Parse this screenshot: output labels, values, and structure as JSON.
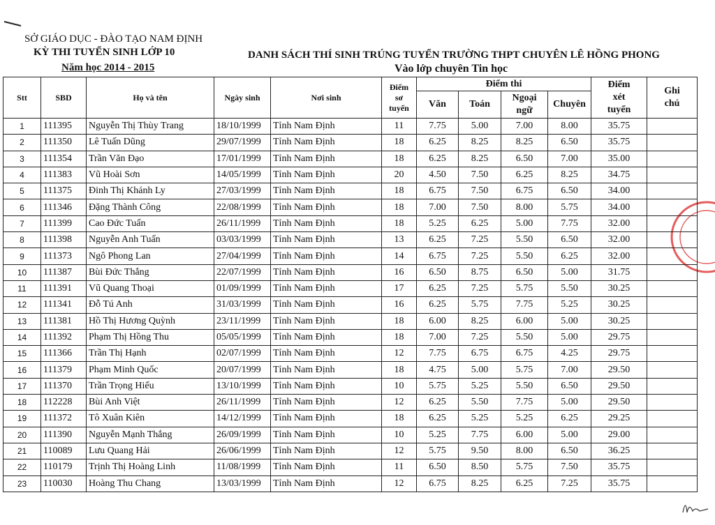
{
  "header": {
    "department": "SỞ GIÁO DỤC - ĐÀO TẠO NAM ĐỊNH",
    "exam": "KỲ THI TUYỂN SINH LỚP 10",
    "year": "Năm học 2014 - 2015",
    "title": "DANH SÁCH THÍ SINH TRÚNG TUYỂN TRƯỜNG THPT CHUYÊN LÊ HỒNG PHONG",
    "subtitle": "Vào lớp chuyên Tin học"
  },
  "table": {
    "columns": {
      "stt": "Stt",
      "sbd": "SBD",
      "name": "Họ và tên",
      "dob": "Ngày sinh",
      "birthplace": "Nơi sinh",
      "prelim": [
        "Điểm",
        "sơ",
        "tuyển"
      ],
      "exam": "Điểm thi",
      "lit": "Văn",
      "math": "Toán",
      "lang": [
        "Ngoại",
        "ngữ"
      ],
      "major": "Chuyên",
      "total": [
        "Điểm",
        "xét",
        "tuyển"
      ],
      "note": [
        "Ghi",
        "chú"
      ]
    },
    "rows": [
      [
        "1",
        "111395",
        "Nguyễn Thị Thùy Trang",
        "18/10/1999",
        "Tỉnh Nam Định",
        "11",
        "7.75",
        "5.00",
        "7.00",
        "8.00",
        "35.75"
      ],
      [
        "2",
        "111350",
        "Lê Tuấn Dũng",
        "29/07/1999",
        "Tỉnh Nam Định",
        "18",
        "6.25",
        "8.25",
        "8.25",
        "6.50",
        "35.75"
      ],
      [
        "3",
        "111354",
        "Trần Văn Đạo",
        "17/01/1999",
        "Tỉnh Nam Định",
        "18",
        "6.25",
        "8.25",
        "6.50",
        "7.00",
        "35.00"
      ],
      [
        "4",
        "111383",
        "Vũ Hoài Sơn",
        "14/05/1999",
        "Tỉnh Nam Định",
        "20",
        "4.50",
        "7.50",
        "6.25",
        "8.25",
        "34.75"
      ],
      [
        "5",
        "111375",
        "Đinh Thị Khánh Ly",
        "27/03/1999",
        "Tỉnh Nam Định",
        "18",
        "6.75",
        "7.50",
        "6.75",
        "6.50",
        "34.00"
      ],
      [
        "6",
        "111346",
        "Đặng Thành Công",
        "22/08/1999",
        "Tỉnh Nam Định",
        "18",
        "7.00",
        "7.50",
        "8.00",
        "5.75",
        "34.00"
      ],
      [
        "7",
        "111399",
        "Cao Đức Tuấn",
        "26/11/1999",
        "Tỉnh Nam Định",
        "18",
        "5.25",
        "6.25",
        "5.00",
        "7.75",
        "32.00"
      ],
      [
        "8",
        "111398",
        "Nguyễn Anh Tuấn",
        "03/03/1999",
        "Tỉnh Nam Định",
        "13",
        "6.25",
        "7.25",
        "5.50",
        "6.50",
        "32.00"
      ],
      [
        "9",
        "111373",
        "Ngô Phong Lan",
        "27/04/1999",
        "Tỉnh Nam Định",
        "14",
        "6.75",
        "7.25",
        "5.50",
        "6.25",
        "32.00"
      ],
      [
        "10",
        "111387",
        "Bùi Đức Thắng",
        "22/07/1999",
        "Tỉnh Nam Định",
        "16",
        "6.50",
        "8.75",
        "6.50",
        "5.00",
        "31.75"
      ],
      [
        "11",
        "111391",
        "Vũ Quang Thoại",
        "01/09/1999",
        "Tỉnh Nam Định",
        "17",
        "6.25",
        "7.25",
        "5.75",
        "5.50",
        "30.25"
      ],
      [
        "12",
        "111341",
        "Đỗ Tú Anh",
        "31/03/1999",
        "Tỉnh Nam Định",
        "16",
        "6.25",
        "5.75",
        "7.75",
        "5.25",
        "30.25"
      ],
      [
        "13",
        "111381",
        "Hồ Thị Hương Quỳnh",
        "23/11/1999",
        "Tỉnh Nam Định",
        "18",
        "6.00",
        "8.25",
        "6.00",
        "5.00",
        "30.25"
      ],
      [
        "14",
        "111392",
        "Phạm Thị Hồng Thu",
        "05/05/1999",
        "Tỉnh Nam Định",
        "18",
        "7.00",
        "7.25",
        "5.50",
        "5.00",
        "29.75"
      ],
      [
        "15",
        "111366",
        "Trần Thị Hạnh",
        "02/07/1999",
        "Tỉnh Nam Định",
        "12",
        "7.75",
        "6.75",
        "6.75",
        "4.25",
        "29.75"
      ],
      [
        "16",
        "111379",
        "Phạm Minh Quốc",
        "20/07/1999",
        "Tỉnh Nam Định",
        "18",
        "4.75",
        "5.00",
        "5.75",
        "7.00",
        "29.50"
      ],
      [
        "17",
        "111370",
        "Trần Trọng Hiếu",
        "13/10/1999",
        "Tỉnh Nam Định",
        "10",
        "5.75",
        "5.25",
        "5.50",
        "6.50",
        "29.50"
      ],
      [
        "18",
        "112228",
        "Bùi Anh Việt",
        "26/11/1999",
        "Tỉnh Nam Định",
        "12",
        "6.25",
        "5.50",
        "7.75",
        "5.00",
        "29.50"
      ],
      [
        "19",
        "111372",
        "Tô Xuân Kiên",
        "14/12/1999",
        "Tỉnh Nam Định",
        "18",
        "6.25",
        "5.25",
        "5.25",
        "6.25",
        "29.25"
      ],
      [
        "20",
        "111390",
        "Nguyễn Mạnh Thắng",
        "26/09/1999",
        "Tỉnh Nam Định",
        "10",
        "5.25",
        "7.75",
        "6.00",
        "5.00",
        "29.00"
      ],
      [
        "21",
        "110089",
        "Lưu Quang Hải",
        "26/06/1999",
        "Tỉnh Nam Định",
        "12",
        "5.75",
        "9.50",
        "8.00",
        "6.50",
        "36.25"
      ],
      [
        "22",
        "110179",
        "Trịnh Thị Hoàng Linh",
        "11/08/1999",
        "Tỉnh Nam Định",
        "11",
        "6.50",
        "8.50",
        "5.75",
        "7.50",
        "35.75"
      ],
      [
        "23",
        "110030",
        "Hoàng Thu Chang",
        "13/03/1999",
        "Tỉnh Nam Định",
        "12",
        "6.75",
        "8.25",
        "6.25",
        "7.25",
        "35.75"
      ]
    ]
  }
}
